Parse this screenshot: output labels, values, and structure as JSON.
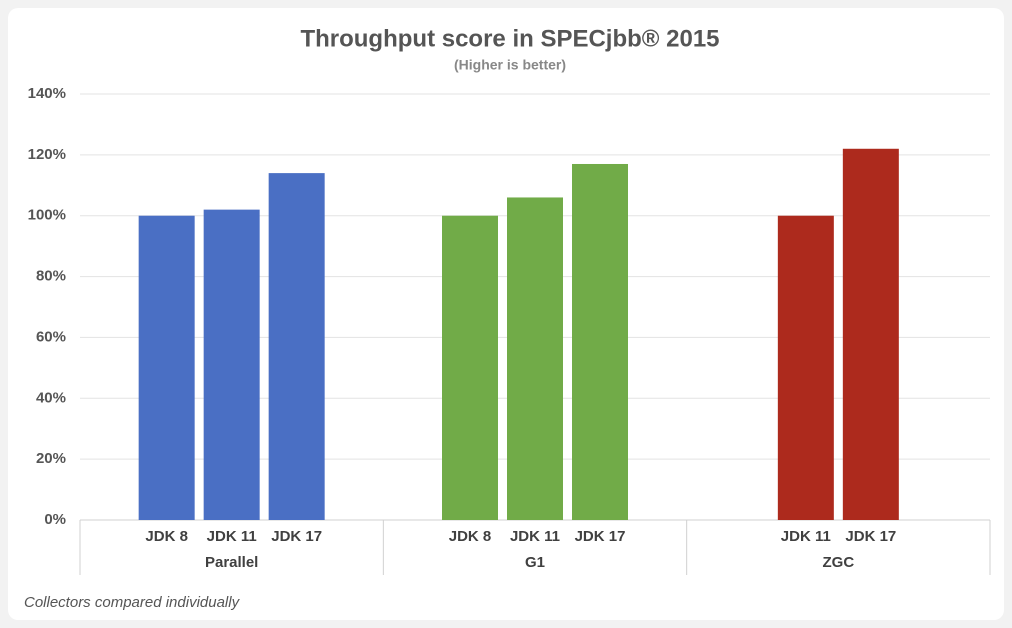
{
  "chart_data": {
    "type": "bar",
    "title": "Throughput score in SPECjbb® 2015",
    "subtitle": "(Higher is better)",
    "note": "Collectors compared individually",
    "groups": [
      {
        "name": "Parallel",
        "color": "#4a6fc4",
        "categories": [
          "JDK 8",
          "JDK 11",
          "JDK 17"
        ],
        "values": [
          100,
          102,
          114
        ]
      },
      {
        "name": "G1",
        "color": "#71ab48",
        "categories": [
          "JDK 8",
          "JDK 11",
          "JDK 17"
        ],
        "values": [
          100,
          106,
          117
        ]
      },
      {
        "name": "ZGC",
        "color": "#ad2a1d",
        "categories": [
          "JDK 11",
          "JDK 17"
        ],
        "values": [
          100,
          122
        ]
      }
    ],
    "ylim": [
      0,
      140
    ],
    "yticks": [
      {
        "value": 0,
        "label": "0%"
      },
      {
        "value": 20,
        "label": "20%"
      },
      {
        "value": 40,
        "label": "40%"
      },
      {
        "value": 60,
        "label": "60%"
      },
      {
        "value": 80,
        "label": "80%"
      },
      {
        "value": 100,
        "label": "100%"
      },
      {
        "value": 120,
        "label": "120%"
      },
      {
        "value": 140,
        "label": "140%"
      }
    ],
    "grid": true
  }
}
